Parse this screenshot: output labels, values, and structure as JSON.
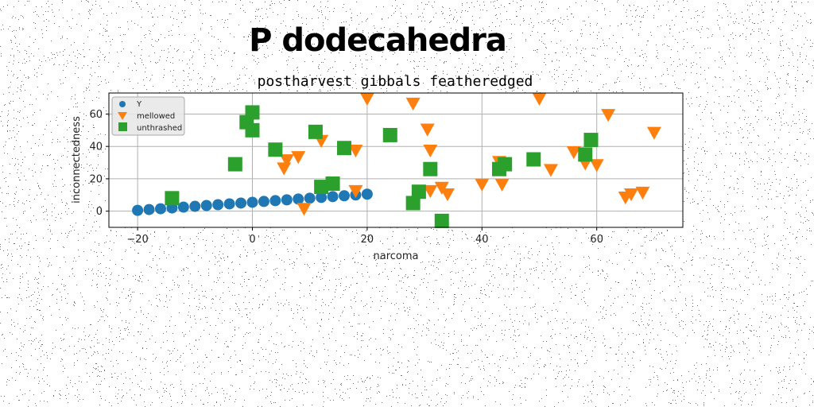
{
  "figure": {
    "suptitle": "P dodecahedra"
  },
  "chart_data": {
    "type": "scatter",
    "title": "postharvest gibbals featheredged",
    "xlabel": "narcoma",
    "ylabel": "inconnectedness",
    "xlim": [
      -25,
      75
    ],
    "ylim": [
      -10,
      73
    ],
    "xticks": [
      -20,
      0,
      20,
      40,
      60
    ],
    "yticks": [
      0,
      20,
      40,
      60
    ],
    "grid": true,
    "legend": "top-left",
    "series": [
      {
        "name": "Y",
        "marker": "circle",
        "color": "#1f77b4",
        "x": [
          -20,
          -18,
          -16,
          -14,
          -12,
          -10,
          -8,
          -6,
          -4,
          -2,
          0,
          2,
          4,
          6,
          8,
          10,
          12,
          14,
          16,
          18,
          20
        ],
        "y": [
          0.5,
          1,
          1.5,
          2,
          2.5,
          3,
          3.5,
          4,
          4.5,
          5,
          5.5,
          6,
          6.5,
          7,
          7.5,
          8,
          8.5,
          9,
          9.5,
          10,
          10.5
        ]
      },
      {
        "name": "mellowed",
        "marker": "triangle-down",
        "color": "#ff7f0e",
        "x": [
          5.5,
          6,
          8,
          9,
          12,
          18,
          18,
          20,
          28,
          30.5,
          31,
          31,
          33,
          34,
          40,
          43,
          43.5,
          50,
          52,
          56,
          58,
          60,
          62,
          65,
          66,
          68,
          70
        ],
        "y": [
          27,
          32,
          34,
          2,
          44,
          38,
          13,
          70,
          67,
          51,
          38,
          13,
          15,
          11,
          17,
          31,
          17,
          70,
          26,
          37,
          30,
          29,
          60,
          9,
          11,
          12,
          49
        ]
      },
      {
        "name": "unthrashed",
        "marker": "square",
        "color": "#2ca02c",
        "x": [
          -14,
          -3,
          -1,
          0,
          0,
          4,
          11,
          12,
          14,
          16,
          24,
          28,
          29,
          31,
          33,
          43,
          44,
          49,
          58,
          59
        ],
        "y": [
          8,
          29,
          55,
          61,
          50,
          38,
          49,
          15,
          17,
          39,
          47,
          5,
          12,
          26,
          -6,
          26,
          29,
          32,
          35,
          44
        ]
      }
    ]
  }
}
